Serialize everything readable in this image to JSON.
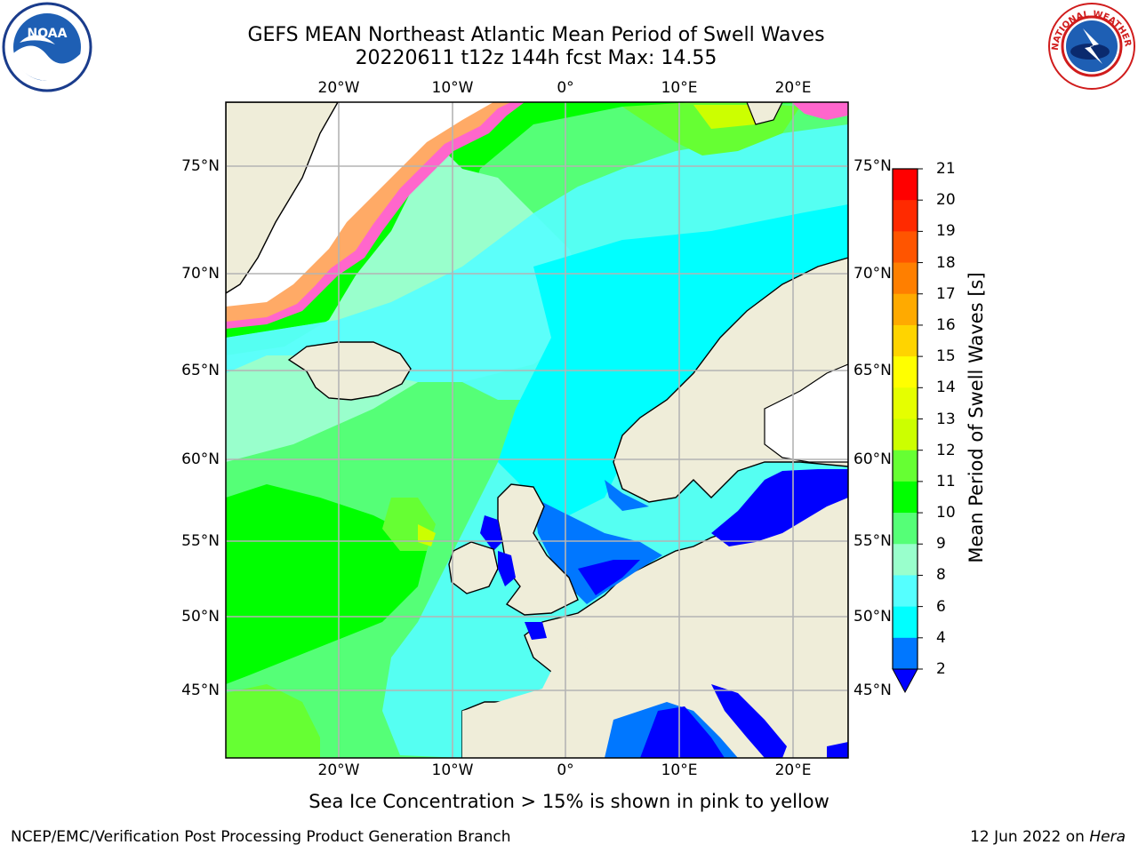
{
  "title_line1": "GEFS MEAN Northeast Atlantic Mean Period of Swell Waves",
  "title_line2": "20220611 t12z 144h fcst   Max: 14.55",
  "lon_labels": [
    "20°W",
    "10°W",
    "0°",
    "10°E",
    "20°E"
  ],
  "lat_labels": [
    "75°N",
    "70°N",
    "65°N",
    "60°N",
    "55°N",
    "50°N",
    "45°N"
  ],
  "colorbar": {
    "title": "Mean Period of Swell Waves [s]",
    "ticks": [
      "21",
      "20",
      "19",
      "18",
      "17",
      "16",
      "15",
      "14",
      "13",
      "12",
      "11",
      "10",
      "9",
      "8",
      "6",
      "4",
      "2"
    ],
    "colors_top_to_bottom": [
      "#ff0000",
      "#ff2a00",
      "#ff5500",
      "#ff7f00",
      "#ffaa00",
      "#ffd400",
      "#ffff00",
      "#e5ff00",
      "#ccff00",
      "#66ff33",
      "#00ff00",
      "#55ff77",
      "#99ffcc",
      "#55ffff",
      "#00ffff",
      "#0077ff"
    ],
    "extend_color": "#0000ff"
  },
  "footnote": "Sea Ice Concentration > 15% is shown in pink to yellow",
  "credit_left": "NCEP/EMC/Verification Post Processing Product Generation Branch",
  "credit_right_date": "12 Jun 2022 on ",
  "credit_right_host": "Hera",
  "logos": {
    "left": "noaa-logo",
    "right": "nws-logo"
  }
}
